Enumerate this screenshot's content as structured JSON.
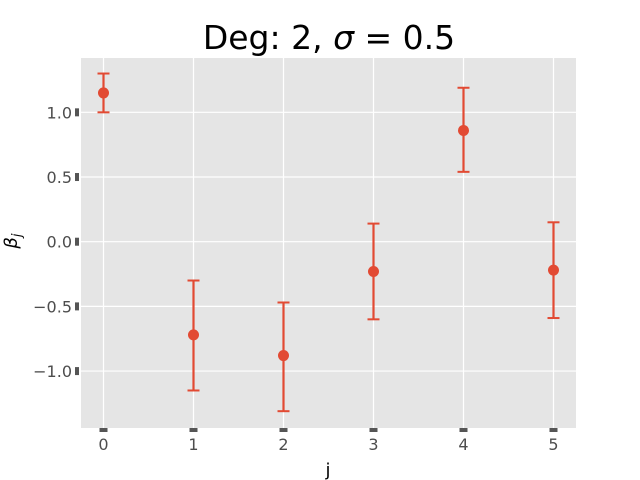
{
  "chart_data": {
    "type": "scatter",
    "title_prefix": "Deg: 2, ",
    "title_symbol": "σ",
    "title_suffix": " = 0.5",
    "xlabel": "j",
    "ylabel_base": "β",
    "ylabel_sub": "j",
    "xlim": [
      -0.25,
      5.25
    ],
    "ylim": [
      -1.44,
      1.42
    ],
    "x": [
      0,
      1,
      2,
      3,
      4,
      5
    ],
    "y": [
      1.15,
      -0.72,
      -0.88,
      -0.23,
      0.86,
      -0.22
    ],
    "err_low": [
      1.0,
      -1.15,
      -1.31,
      -0.6,
      0.54,
      -0.59
    ],
    "err_high": [
      1.3,
      -0.3,
      -0.47,
      0.14,
      1.19,
      0.15
    ],
    "x_ticks": [
      0,
      1,
      2,
      3,
      4,
      5
    ],
    "x_tick_labels": [
      "0",
      "1",
      "2",
      "3",
      "4",
      "5"
    ],
    "y_ticks": [
      1.0,
      0.5,
      0.0,
      -0.5,
      -1.0
    ],
    "y_tick_labels": [
      "1.0",
      "0.5",
      "0.0",
      "−0.5",
      "−1.0"
    ],
    "grid": true,
    "colors": {
      "marker": "#e24a33",
      "background": "#e5e5e5",
      "grid": "#ffffff",
      "tick_mark": "#555555"
    }
  }
}
